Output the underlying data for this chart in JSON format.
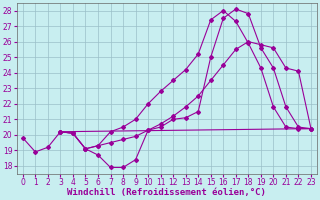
{
  "xlabel": "Windchill (Refroidissement éolien,°C)",
  "bg_color": "#c8eef0",
  "grid_color": "#9bbfc8",
  "line_color": "#990099",
  "xlim": [
    -0.5,
    23.5
  ],
  "ylim": [
    17.5,
    28.5
  ],
  "xticks": [
    0,
    1,
    2,
    3,
    4,
    5,
    6,
    7,
    8,
    9,
    10,
    11,
    12,
    13,
    14,
    15,
    16,
    17,
    18,
    19,
    20,
    21,
    22,
    23
  ],
  "yticks": [
    18,
    19,
    20,
    21,
    22,
    23,
    24,
    25,
    26,
    27,
    28
  ],
  "series1_x": [
    0,
    1,
    2,
    3,
    4,
    5,
    6,
    7,
    8,
    9,
    10,
    11,
    12,
    13,
    14,
    15,
    16,
    17,
    18,
    19,
    20,
    21,
    22,
    23
  ],
  "series1_y": [
    19.8,
    18.9,
    19.2,
    20.2,
    20.1,
    19.1,
    18.7,
    17.9,
    17.9,
    18.4,
    20.3,
    20.5,
    21.0,
    21.1,
    21.5,
    25.0,
    27.5,
    28.1,
    27.8,
    25.6,
    24.3,
    21.8,
    20.5,
    20.4
  ],
  "series2_x": [
    3,
    4,
    5,
    6,
    7,
    8,
    9,
    10,
    11,
    12,
    13,
    14,
    15,
    16,
    17,
    18,
    19,
    20,
    21,
    22,
    23
  ],
  "series2_y": [
    20.2,
    20.1,
    19.1,
    19.3,
    20.2,
    20.5,
    21.0,
    22.0,
    22.8,
    23.5,
    24.2,
    25.2,
    27.4,
    28.0,
    27.3,
    25.9,
    24.3,
    21.8,
    20.5,
    20.4,
    20.4
  ],
  "series3_x": [
    3,
    23
  ],
  "series3_y": [
    20.2,
    20.4
  ],
  "series4_x": [
    3,
    4,
    5,
    6,
    7,
    8,
    9,
    10,
    11,
    12,
    13,
    14,
    15,
    16,
    17,
    18,
    19,
    20,
    21,
    22,
    23
  ],
  "series4_y": [
    20.2,
    20.1,
    19.1,
    19.3,
    19.5,
    19.7,
    19.9,
    20.3,
    20.7,
    21.2,
    21.8,
    22.5,
    23.5,
    24.5,
    25.5,
    26.0,
    25.8,
    25.6,
    24.3,
    24.1,
    20.4
  ],
  "xlabel_fontsize": 6.5,
  "tick_fontsize": 5.5,
  "figsize": [
    3.2,
    2.0
  ],
  "dpi": 100
}
